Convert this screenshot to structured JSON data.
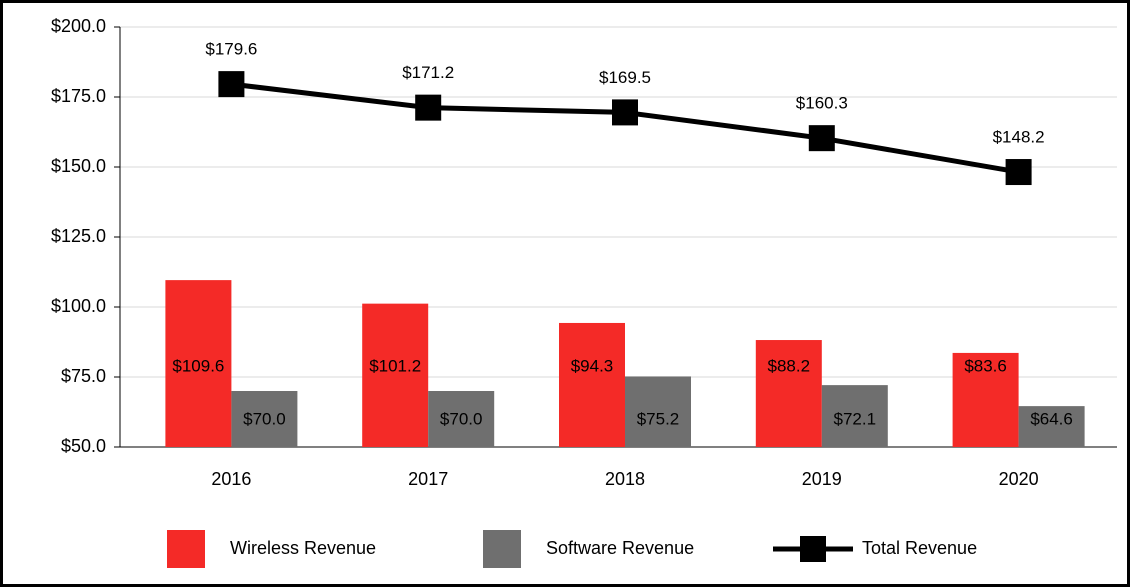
{
  "chart_data": {
    "type": "bar",
    "categories": [
      "2016",
      "2017",
      "2018",
      "2019",
      "2020"
    ],
    "series": [
      {
        "name": "Wireless Revenue",
        "type": "bar",
        "color": "#f42a27",
        "values": [
          109.6,
          101.2,
          94.3,
          88.2,
          83.6
        ],
        "value_labels": [
          "$109.6",
          "$101.2",
          "$94.3",
          "$88.2",
          "$83.6"
        ]
      },
      {
        "name": "Software Revenue",
        "type": "bar",
        "color": "#6f6f6f",
        "values": [
          70.0,
          70.0,
          75.2,
          72.1,
          64.6
        ],
        "value_labels": [
          "$70.0",
          "$70.0",
          "$75.2",
          "$72.1",
          "$64.6"
        ]
      },
      {
        "name": "Total Revenue",
        "type": "line",
        "color": "#000000",
        "values": [
          179.6,
          171.2,
          169.5,
          160.3,
          148.2
        ],
        "value_labels": [
          "$179.6",
          "$171.2",
          "$169.5",
          "$160.3",
          "$148.2"
        ]
      }
    ],
    "ylim": [
      50,
      200
    ],
    "yticks": [
      {
        "value": 50,
        "label": "$50.0"
      },
      {
        "value": 75,
        "label": "$75.0"
      },
      {
        "value": 100,
        "label": "$100.0"
      },
      {
        "value": 125,
        "label": "$125.0"
      },
      {
        "value": 150,
        "label": "$150.0"
      },
      {
        "value": 175,
        "label": "$175.0"
      },
      {
        "value": 200,
        "label": "$200.0"
      }
    ],
    "grid": true,
    "legend": "bottom"
  }
}
